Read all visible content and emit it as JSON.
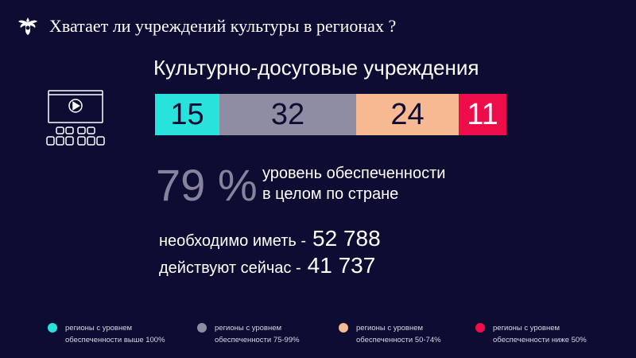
{
  "header": {
    "title": "Хватает ли учреждений культуры в регионах ?"
  },
  "chart_data": {
    "type": "bar",
    "title": "Культурно-досуговые учреждения",
    "orientation": "horizontal-stacked",
    "categories": [
      "регионы с уровнем обеспеченности выше 100%",
      "регионы с уровнем обеспеченности 75-99%",
      "регионы с уровнем обеспеченности 50-74%",
      "регионы с уровнем обеспеченности ниже 50%"
    ],
    "values": [
      15,
      32,
      24,
      11
    ],
    "colors": [
      "#28e2dc",
      "#8e8da3",
      "#f7b991",
      "#ee0d4a"
    ],
    "value_colors": [
      "#0d0c33",
      "#0d0c33",
      "#0d0c33",
      "#ffffff"
    ],
    "legend_position": "bottom"
  },
  "summary": {
    "percent": "79 %",
    "percent_desc_line1": "уровень обеспеченности",
    "percent_desc_line2": "в целом по стране",
    "need_label": "необходимо иметь -",
    "need_value": "52 788",
    "have_label": "действуют сейчас -",
    "have_value": "41 737"
  },
  "legend": [
    {
      "line1": "регионы с уровнем",
      "line2": "обеспеченности выше 100%",
      "color": "#28e2dc"
    },
    {
      "line1": "регионы с уровнем",
      "line2": "обеспеченности 75-99%",
      "color": "#8e8da3"
    },
    {
      "line1": "регионы с уровнем",
      "line2": "обеспеченности 50-74%",
      "color": "#f7b991"
    },
    {
      "line1": "регионы с уровнем",
      "line2": "обеспеченности ниже 50%",
      "color": "#ee0d4a"
    }
  ],
  "icons": {
    "emblem": "emblem-icon",
    "cinema": "cinema-audience-icon"
  }
}
